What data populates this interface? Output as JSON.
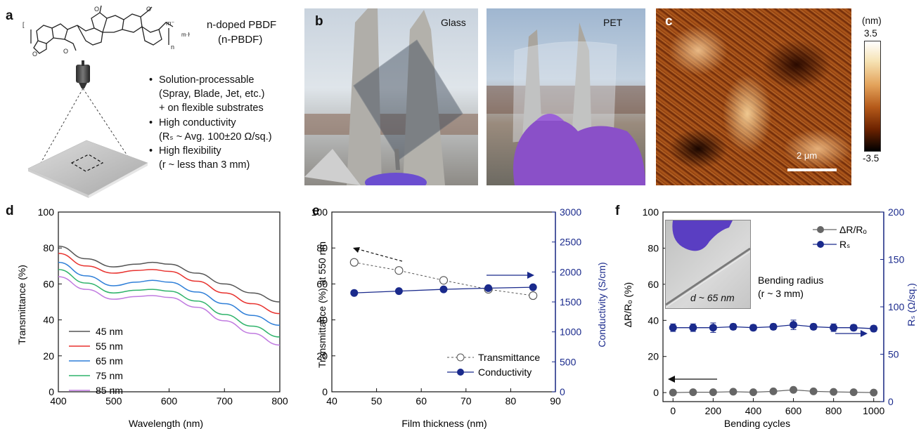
{
  "panel_a": {
    "letter": "a",
    "material_name": "n-doped PBDF",
    "material_abbrev": "(n-PBDF)",
    "dopant_label": "m·H⁺",
    "charge_label": "m⁻",
    "repeat_label": "n",
    "bullets": [
      {
        "text": "Solution-processable",
        "dot": true
      },
      {
        "text": "(Spray, Blade, Jet, etc.)",
        "dot": false
      },
      {
        "text": "+ on flexible substrates",
        "dot": false
      },
      {
        "text": "High conductivity",
        "dot": true
      },
      {
        "text": "(Rₛ ~ Avg. 100±20 Ω/sq.)",
        "dot": false
      },
      {
        "text": "High flexibility",
        "dot": true
      },
      {
        "text": "(r ~ less than 3 mm)",
        "dot": false
      }
    ]
  },
  "panel_b": {
    "letter": "b",
    "label_left": "Glass",
    "label_right": "PET"
  },
  "panel_c": {
    "letter": "c",
    "unit": "(nm)",
    "scale_max": "3.5",
    "scale_min": "-3.5",
    "scale_bar": "2 μm"
  },
  "chart_data": [
    {
      "panel": "d",
      "type": "line",
      "xlabel": "Wavelength (nm)",
      "ylabel": "Transmittance (%)",
      "xlim": [
        400,
        800
      ],
      "ylim": [
        0,
        100
      ],
      "xticks": [
        400,
        500,
        600,
        700,
        800
      ],
      "yticks": [
        0,
        20,
        40,
        60,
        80,
        100
      ],
      "legend_position": "bottom-left",
      "x": [
        400,
        450,
        500,
        540,
        570,
        600,
        650,
        700,
        750,
        800
      ],
      "series": [
        {
          "name": "45 nm",
          "color": "#555555",
          "values": [
            81,
            74,
            69.5,
            71,
            72,
            71,
            66,
            60,
            55,
            50
          ]
        },
        {
          "name": "55 nm",
          "color": "#e8322e",
          "values": [
            77,
            70,
            66,
            67.5,
            68,
            67,
            61.5,
            55,
            49,
            43.5
          ]
        },
        {
          "name": "65 nm",
          "color": "#2f7fd8",
          "values": [
            72,
            64.5,
            59,
            61,
            62,
            61,
            55.5,
            49,
            42.5,
            37
          ]
        },
        {
          "name": "75 nm",
          "color": "#2fb36b",
          "values": [
            68,
            60.5,
            55,
            56.5,
            57,
            56,
            50.5,
            43,
            36.5,
            30.5
          ]
        },
        {
          "name": "85 nm",
          "color": "#c07ae0",
          "values": [
            64,
            57,
            51.5,
            53,
            53.5,
            52.5,
            47,
            39.5,
            32.5,
            26
          ]
        }
      ]
    },
    {
      "panel": "e",
      "type": "scatter",
      "xlabel": "Film thickness (nm)",
      "ylabel": "Transmittance (%) at 550 nm",
      "y2label": "Conductivity (S/cm)",
      "xlim": [
        40,
        90
      ],
      "ylim": [
        0,
        100
      ],
      "y2lim": [
        0,
        3000
      ],
      "xticks": [
        40,
        50,
        60,
        70,
        80,
        90
      ],
      "yticks": [
        0,
        20,
        40,
        60,
        80,
        100
      ],
      "y2ticks": [
        0,
        500,
        1000,
        1500,
        2000,
        2500,
        3000
      ],
      "legend_position": "bottom-right",
      "x": [
        45,
        55,
        65,
        75,
        85
      ],
      "series": [
        {
          "name": "Transmittance",
          "axis": "left",
          "color": "#555555",
          "values": [
            72,
            67.5,
            62,
            57,
            53.5
          ]
        },
        {
          "name": "Conductivity",
          "axis": "right",
          "color": "#1a2a8c",
          "values": [
            1650,
            1680,
            1710,
            1730,
            1745
          ]
        }
      ]
    },
    {
      "panel": "f",
      "type": "scatter",
      "xlabel": "Bending cycles",
      "ylabel": "ΔR/Rₒ (%)",
      "y2label": "Rₛ (Ω/sq.)",
      "xlim": [
        -50,
        1050
      ],
      "ylim": [
        -5,
        100
      ],
      "y2lim": [
        0,
        200
      ],
      "xticks": [
        0,
        200,
        400,
        600,
        800,
        1000
      ],
      "yticks": [
        0,
        20,
        40,
        60,
        80,
        100
      ],
      "y2ticks": [
        0,
        50,
        100,
        150,
        200
      ],
      "legend_position": "top-right",
      "annotation_title": "Bending radius",
      "annotation_sub": "(r ~ 3 mm)",
      "inset_label": "d ~ 65 nm",
      "x": [
        0,
        100,
        200,
        300,
        400,
        500,
        600,
        700,
        800,
        900,
        1000
      ],
      "series": [
        {
          "name": "ΔR/Rₒ",
          "axis": "left",
          "color": "#666666",
          "values": [
            0,
            0.2,
            0.2,
            0.5,
            0.2,
            0.7,
            1.5,
            0.7,
            0.4,
            0.2,
            0
          ]
        },
        {
          "name": "Rₛ",
          "axis": "right",
          "color": "#1a2a8c",
          "values": [
            78,
            78,
            78,
            79,
            78,
            79,
            81,
            79,
            78,
            78,
            77
          ]
        },
        {
          "name": "Rₛ_err",
          "axis": "right",
          "color": "#1a2a8c",
          "values": [
            4,
            4,
            5,
            3,
            3,
            3,
            5,
            3,
            4,
            3,
            3
          ]
        }
      ]
    }
  ]
}
